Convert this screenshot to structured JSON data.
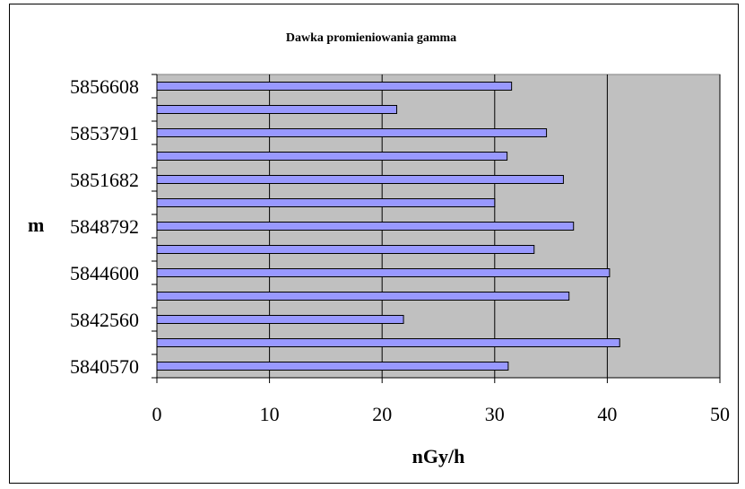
{
  "chart_data": {
    "type": "bar",
    "orientation": "horizontal",
    "title": "Dawka promieniowania gamma",
    "xlabel": "nGy/h",
    "ylabel": "m",
    "xlim": [
      0,
      50
    ],
    "x_ticks": [
      "0",
      "10",
      "20",
      "30",
      "40",
      "50"
    ],
    "categories": [
      "5856608",
      "",
      "5853791",
      "",
      "5851682",
      "",
      "5848792",
      "",
      "5844600",
      "",
      "5842560",
      "",
      "5840570"
    ],
    "values": [
      31.5,
      21.3,
      34.6,
      31.1,
      36.1,
      30.0,
      37.0,
      33.5,
      40.2,
      36.6,
      21.9,
      41.1,
      31.2
    ],
    "grid": "vertical major gridlines",
    "plot_background": "#c0c0c0",
    "bar_color": "#9999ff",
    "bar_border": "#000000"
  }
}
